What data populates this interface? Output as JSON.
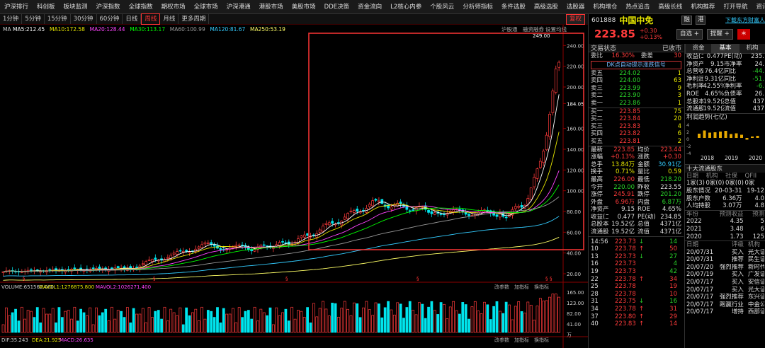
{
  "menu": {
    "items": [
      "沪深排行",
      "科创板",
      "板块监测",
      "沪深指数",
      "全球指数",
      "期权市场",
      "全球市场",
      "沪深港通",
      "港股市场",
      "美股市场",
      "DDE决策",
      "资金流向",
      "L2核心内参",
      "个股风云",
      "分析师指标",
      "条件选股",
      "高级选股",
      "选股器",
      "机构增仓",
      "热点追击",
      "高级长线",
      "机构推荐",
      "打开导航",
      "资讯"
    ]
  },
  "toolbar": {
    "periods": [
      "1分钟",
      "5分钟",
      "15分钟",
      "30分钟",
      "60分钟",
      "日线",
      "周线",
      "月线",
      "更多周期"
    ],
    "active_period": "周线",
    "right_label": "复权",
    "right_buttons": [
      "复权",
      "沪股通",
      "融资融券",
      "设置均线"
    ]
  },
  "ma": {
    "prefix": "MA",
    "items": [
      {
        "label": "MA5:212.45",
        "color": "#ffffff"
      },
      {
        "label": "MA10:172.58",
        "color": "#e6e600"
      },
      {
        "label": "MA20:128.44",
        "color": "#ff44ff"
      },
      {
        "label": "MA30:113.17",
        "color": "#00ff00"
      },
      {
        "label": "MA60:100.99",
        "color": "#999999"
      },
      {
        "label": "MA120:81.67",
        "color": "#33ccff"
      },
      {
        "label": "MA250:53.19",
        "color": "#ffff66"
      }
    ]
  },
  "price_axis": [
    "240.00",
    "220.00",
    "200.00",
    "184.05",
    "160.00",
    "140.00",
    "120.00",
    "100.00",
    "80.00",
    "60.00",
    "40.00",
    "20.00"
  ],
  "peak_label": "249.00",
  "vol_panel": {
    "label": "VOLUME:651562.000",
    "ma1": "MAVOL1:1276875.800",
    "ma2": "MAVOL2:1026271.400",
    "right_buttons": [
      "改参数",
      "加指标",
      "换指标"
    ],
    "axis": [
      "165.00",
      "123.00",
      "82.00",
      "41.00",
      "万"
    ]
  },
  "macd_panel": {
    "label": "DIF:35.243",
    "dea": "DEA:21.925",
    "macd": "MACD:26.635",
    "right_buttons": [
      "改参数",
      "加指标",
      "换指标"
    ]
  },
  "stock": {
    "code": "601888",
    "name": "中国中免",
    "price": "223.85",
    "change": "+0.30",
    "pct": "+0.13%",
    "tags": [
      "融",
      "港"
    ],
    "buttons": [
      "自选",
      "提醒"
    ],
    "promo": "下载东方财富人"
  },
  "panel_tabs": [
    "交易状态",
    "已收市"
  ],
  "right_tabs": [
    "资金",
    "基本",
    "机构"
  ],
  "order_book": {
    "weibi": {
      "label": "委比",
      "value": "16.30%",
      "label2": "委差",
      "value2": "30"
    },
    "banner": "DK点自动提示涨跌信号",
    "sells": [
      {
        "l": "卖五",
        "p": "224.02",
        "v": "1"
      },
      {
        "l": "卖四",
        "p": "224.00",
        "v": "63"
      },
      {
        "l": "卖三",
        "p": "223.99",
        "v": "9"
      },
      {
        "l": "卖二",
        "p": "223.90",
        "v": "3"
      },
      {
        "l": "卖一",
        "p": "223.86",
        "v": "1"
      }
    ],
    "buys": [
      {
        "l": "买一",
        "p": "223.85",
        "v": "75"
      },
      {
        "l": "买二",
        "p": "223.84",
        "v": "20"
      },
      {
        "l": "买三",
        "p": "223.83",
        "v": "4"
      },
      {
        "l": "买四",
        "p": "223.82",
        "v": "6"
      },
      {
        "l": "买五",
        "p": "223.81",
        "v": "2"
      }
    ]
  },
  "stats": [
    [
      "最新",
      "223.85",
      "均价",
      "223.44"
    ],
    [
      "涨幅",
      "+0.13%",
      "涨跌",
      "+0.30"
    ],
    [
      "总手",
      "13.84万",
      "金额",
      "30.91亿"
    ],
    [
      "换手",
      "0.71%",
      "量比",
      "0.59"
    ],
    [
      "最高",
      "226.00",
      "最低",
      "218.20"
    ],
    [
      "今开",
      "220.00",
      "昨收",
      "223.55"
    ],
    [
      "涨停",
      "245.91",
      "跌停",
      "201.20"
    ],
    [
      "外盘",
      "6.96万",
      "内盘",
      "6.87万"
    ],
    [
      "净资产",
      "9.15",
      "ROE",
      "4.65%"
    ],
    [
      "收益(二)",
      "0.477",
      "PE(动)",
      "234.85"
    ],
    [
      "总股本",
      "19.52亿",
      "总值",
      "4371亿"
    ],
    [
      "流通股",
      "19.52亿",
      "流值",
      "4371亿"
    ]
  ],
  "fundamentals": [
    [
      "收益(二)",
      "0.477",
      "PE(动)",
      "235."
    ],
    [
      "净资产",
      "9.15",
      "市净率",
      "24."
    ],
    [
      "总营收",
      "76.4亿",
      "同比",
      "-44."
    ],
    [
      "净利润",
      "9.31亿",
      "同比",
      "-51."
    ],
    [
      "毛利率",
      "42.55%",
      "净利率",
      "-6."
    ],
    [
      "ROE",
      "4.65%",
      "负债率",
      "26."
    ],
    [
      "总股本",
      "19.52亿",
      "总值",
      "437"
    ],
    [
      "流通股",
      "19.52亿",
      "流值",
      "437"
    ]
  ],
  "profit_trend": {
    "title": "利润趋势(七亿)",
    "y_ticks": [
      "4",
      "2",
      "0",
      "-2",
      "-4"
    ],
    "x_labels": [
      "2018",
      "2019",
      "2020"
    ],
    "bars": [
      1.2,
      2.1,
      1.5,
      1.6,
      1.8,
      2.0,
      1.1,
      1.3,
      0.9,
      -0.5,
      0.4,
      0.6
    ]
  },
  "holders": {
    "title": "十大流通股东",
    "cols": [
      "日期",
      "机构",
      "社保",
      "QFII"
    ],
    "row1": [
      "1家(3)",
      "0家(0)",
      "0家(0)",
      "0家"
    ],
    "info": [
      [
        "股东情况",
        "20-03-31",
        "19-12"
      ],
      [
        "股东户数",
        "6.36万",
        "4.0"
      ],
      [
        "人均持股",
        "3.07万",
        "4.8"
      ]
    ]
  },
  "forecast": {
    "cols": [
      "年份",
      "预测收益",
      "预测"
    ],
    "rows": [
      [
        "2022",
        "4.35",
        "5"
      ],
      [
        "2021",
        "3.48",
        "6"
      ],
      [
        "2020",
        "1.73",
        "125"
      ]
    ]
  },
  "ticks": [
    {
      "t": "14:56",
      "p": "223.73",
      "arrow": "↓",
      "v": "14",
      "vc": "grn"
    },
    {
      "t": "10",
      "p": "223.78",
      "arrow": "↑",
      "v": "50",
      "vc": "red"
    },
    {
      "t": "13",
      "p": "223.73",
      "arrow": "↓",
      "v": "27",
      "vc": "grn"
    },
    {
      "t": "16",
      "p": "223.73",
      "arrow": "",
      "v": "4",
      "vc": "grn"
    },
    {
      "t": "19",
      "p": "223.73",
      "arrow": "",
      "v": "42",
      "vc": "grn"
    },
    {
      "t": "22",
      "p": "223.78",
      "arrow": "↑",
      "v": "34",
      "vc": "red"
    },
    {
      "t": "25",
      "p": "223.78",
      "arrow": "",
      "v": "19",
      "vc": "red"
    },
    {
      "t": "28",
      "p": "223.78",
      "arrow": "",
      "v": "10",
      "vc": "red"
    },
    {
      "t": "31",
      "p": "223.75",
      "arrow": "↓",
      "v": "16",
      "vc": "grn"
    },
    {
      "t": "34",
      "p": "223.78",
      "arrow": "↑",
      "v": "31",
      "vc": "red"
    },
    {
      "t": "37",
      "p": "223.80",
      "arrow": "↑",
      "v": "29",
      "vc": "red"
    },
    {
      "t": "40",
      "p": "223.83",
      "arrow": "↑",
      "v": "14",
      "vc": "red"
    }
  ],
  "ratings": {
    "cols": [
      "日期",
      "评级",
      "机构"
    ],
    "rows": [
      [
        "20/07/31",
        "买入",
        "光大证"
      ],
      [
        "20/07/31",
        "推荐",
        "民生证"
      ],
      [
        "20/07/20",
        "强烈推荐",
        "新时代"
      ],
      [
        "20/07/19",
        "买入",
        "广发证"
      ],
      [
        "20/07/17",
        "买入",
        "安信证"
      ],
      [
        "20/07/17",
        "买入",
        "光大证"
      ],
      [
        "20/07/17",
        "强烈推荐",
        "东兴证"
      ],
      [
        "20/07/17",
        "跑赢行业",
        "中金公"
      ],
      [
        "20/07/17",
        "增持",
        "西部证"
      ]
    ]
  },
  "colors": {
    "up": "#ff3b3b",
    "down": "#00e5ee",
    "highlight_box": "#e33"
  }
}
